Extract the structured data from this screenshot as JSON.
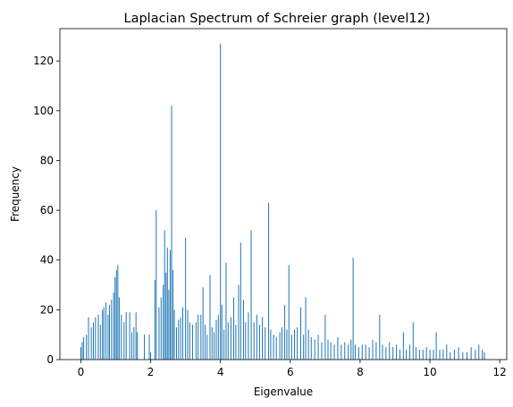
{
  "chart_data": {
    "type": "bar",
    "title": "Laplacian Spectrum of Schreier graph (level12)",
    "xlabel": "Eigenvalue",
    "ylabel": "Frequency",
    "xlim": [
      -0.6,
      12.2
    ],
    "ylim": [
      0,
      133
    ],
    "xticks": [
      0,
      2,
      4,
      6,
      8,
      10,
      12
    ],
    "yticks": [
      0,
      20,
      40,
      60,
      80,
      100,
      120
    ],
    "bar_color": "#1f77b4",
    "grid": false,
    "legend": "none",
    "bin_width": 0.02,
    "peaks": [
      {
        "x": 0.0,
        "y": 5
      },
      {
        "x": 0.04,
        "y": 7
      },
      {
        "x": 0.08,
        "y": 9
      },
      {
        "x": 0.16,
        "y": 10
      },
      {
        "x": 0.22,
        "y": 17
      },
      {
        "x": 0.3,
        "y": 13
      },
      {
        "x": 0.36,
        "y": 15
      },
      {
        "x": 0.42,
        "y": 17
      },
      {
        "x": 0.5,
        "y": 18
      },
      {
        "x": 0.56,
        "y": 14
      },
      {
        "x": 0.62,
        "y": 20
      },
      {
        "x": 0.66,
        "y": 21
      },
      {
        "x": 0.72,
        "y": 23
      },
      {
        "x": 0.78,
        "y": 18
      },
      {
        "x": 0.82,
        "y": 22
      },
      {
        "x": 0.88,
        "y": 24
      },
      {
        "x": 0.94,
        "y": 27
      },
      {
        "x": 0.98,
        "y": 33
      },
      {
        "x": 1.02,
        "y": 36
      },
      {
        "x": 1.06,
        "y": 38
      },
      {
        "x": 1.1,
        "y": 25
      },
      {
        "x": 1.16,
        "y": 18
      },
      {
        "x": 1.24,
        "y": 15
      },
      {
        "x": 1.3,
        "y": 19
      },
      {
        "x": 1.4,
        "y": 19
      },
      {
        "x": 1.46,
        "y": 11
      },
      {
        "x": 1.52,
        "y": 13
      },
      {
        "x": 1.58,
        "y": 19
      },
      {
        "x": 1.62,
        "y": 11
      },
      {
        "x": 1.82,
        "y": 10
      },
      {
        "x": 1.96,
        "y": 10
      },
      {
        "x": 2.0,
        "y": 3
      },
      {
        "x": 2.12,
        "y": 32
      },
      {
        "x": 2.16,
        "y": 60
      },
      {
        "x": 2.24,
        "y": 21
      },
      {
        "x": 2.3,
        "y": 25
      },
      {
        "x": 2.36,
        "y": 30
      },
      {
        "x": 2.4,
        "y": 52
      },
      {
        "x": 2.44,
        "y": 35
      },
      {
        "x": 2.48,
        "y": 45
      },
      {
        "x": 2.52,
        "y": 28
      },
      {
        "x": 2.56,
        "y": 44
      },
      {
        "x": 2.6,
        "y": 102
      },
      {
        "x": 2.64,
        "y": 36
      },
      {
        "x": 2.68,
        "y": 20
      },
      {
        "x": 2.74,
        "y": 13
      },
      {
        "x": 2.8,
        "y": 16
      },
      {
        "x": 2.86,
        "y": 17
      },
      {
        "x": 2.92,
        "y": 21
      },
      {
        "x": 3.0,
        "y": 49
      },
      {
        "x": 3.06,
        "y": 20
      },
      {
        "x": 3.12,
        "y": 15
      },
      {
        "x": 3.2,
        "y": 14
      },
      {
        "x": 3.3,
        "y": 15
      },
      {
        "x": 3.36,
        "y": 18
      },
      {
        "x": 3.44,
        "y": 18
      },
      {
        "x": 3.5,
        "y": 29
      },
      {
        "x": 3.56,
        "y": 14
      },
      {
        "x": 3.62,
        "y": 10
      },
      {
        "x": 3.7,
        "y": 34
      },
      {
        "x": 3.76,
        "y": 13
      },
      {
        "x": 3.82,
        "y": 11
      },
      {
        "x": 3.88,
        "y": 16
      },
      {
        "x": 3.94,
        "y": 18
      },
      {
        "x": 4.0,
        "y": 127
      },
      {
        "x": 4.04,
        "y": 22
      },
      {
        "x": 4.1,
        "y": 12
      },
      {
        "x": 4.16,
        "y": 39
      },
      {
        "x": 4.22,
        "y": 15
      },
      {
        "x": 4.3,
        "y": 17
      },
      {
        "x": 4.38,
        "y": 25
      },
      {
        "x": 4.44,
        "y": 14
      },
      {
        "x": 4.52,
        "y": 30
      },
      {
        "x": 4.58,
        "y": 47
      },
      {
        "x": 4.66,
        "y": 24
      },
      {
        "x": 4.72,
        "y": 15
      },
      {
        "x": 4.8,
        "y": 19
      },
      {
        "x": 4.88,
        "y": 52
      },
      {
        "x": 4.96,
        "y": 15
      },
      {
        "x": 5.04,
        "y": 18
      },
      {
        "x": 5.12,
        "y": 14
      },
      {
        "x": 5.2,
        "y": 17
      },
      {
        "x": 5.28,
        "y": 13
      },
      {
        "x": 5.38,
        "y": 63
      },
      {
        "x": 5.44,
        "y": 12
      },
      {
        "x": 5.52,
        "y": 10
      },
      {
        "x": 5.6,
        "y": 9
      },
      {
        "x": 5.7,
        "y": 11
      },
      {
        "x": 5.76,
        "y": 13
      },
      {
        "x": 5.84,
        "y": 22
      },
      {
        "x": 5.9,
        "y": 12
      },
      {
        "x": 5.96,
        "y": 38
      },
      {
        "x": 6.04,
        "y": 10
      },
      {
        "x": 6.12,
        "y": 12
      },
      {
        "x": 6.2,
        "y": 13
      },
      {
        "x": 6.3,
        "y": 21
      },
      {
        "x": 6.38,
        "y": 10
      },
      {
        "x": 6.44,
        "y": 25
      },
      {
        "x": 6.52,
        "y": 12
      },
      {
        "x": 6.6,
        "y": 9
      },
      {
        "x": 6.7,
        "y": 8
      },
      {
        "x": 6.8,
        "y": 10
      },
      {
        "x": 6.9,
        "y": 7
      },
      {
        "x": 7.0,
        "y": 18
      },
      {
        "x": 7.08,
        "y": 8
      },
      {
        "x": 7.16,
        "y": 7
      },
      {
        "x": 7.26,
        "y": 6
      },
      {
        "x": 7.36,
        "y": 9
      },
      {
        "x": 7.46,
        "y": 6
      },
      {
        "x": 7.56,
        "y": 7
      },
      {
        "x": 7.66,
        "y": 6
      },
      {
        "x": 7.74,
        "y": 8
      },
      {
        "x": 7.8,
        "y": 41
      },
      {
        "x": 7.86,
        "y": 6
      },
      {
        "x": 7.96,
        "y": 5
      },
      {
        "x": 8.06,
        "y": 6
      },
      {
        "x": 8.16,
        "y": 6
      },
      {
        "x": 8.26,
        "y": 5
      },
      {
        "x": 8.36,
        "y": 8
      },
      {
        "x": 8.46,
        "y": 7
      },
      {
        "x": 8.56,
        "y": 18
      },
      {
        "x": 8.64,
        "y": 6
      },
      {
        "x": 8.74,
        "y": 5
      },
      {
        "x": 8.84,
        "y": 7
      },
      {
        "x": 8.94,
        "y": 5
      },
      {
        "x": 9.04,
        "y": 6
      },
      {
        "x": 9.14,
        "y": 4
      },
      {
        "x": 9.24,
        "y": 11
      },
      {
        "x": 9.32,
        "y": 4
      },
      {
        "x": 9.42,
        "y": 6
      },
      {
        "x": 9.52,
        "y": 15
      },
      {
        "x": 9.6,
        "y": 5
      },
      {
        "x": 9.7,
        "y": 4
      },
      {
        "x": 9.8,
        "y": 4
      },
      {
        "x": 9.9,
        "y": 5
      },
      {
        "x": 10.0,
        "y": 4
      },
      {
        "x": 10.1,
        "y": 4
      },
      {
        "x": 10.18,
        "y": 11
      },
      {
        "x": 10.28,
        "y": 4
      },
      {
        "x": 10.38,
        "y": 4
      },
      {
        "x": 10.48,
        "y": 6
      },
      {
        "x": 10.58,
        "y": 3
      },
      {
        "x": 10.7,
        "y": 4
      },
      {
        "x": 10.82,
        "y": 5
      },
      {
        "x": 10.94,
        "y": 3
      },
      {
        "x": 11.06,
        "y": 3
      },
      {
        "x": 11.18,
        "y": 5
      },
      {
        "x": 11.3,
        "y": 4
      },
      {
        "x": 11.4,
        "y": 6
      },
      {
        "x": 11.5,
        "y": 4
      },
      {
        "x": 11.56,
        "y": 3
      }
    ]
  }
}
